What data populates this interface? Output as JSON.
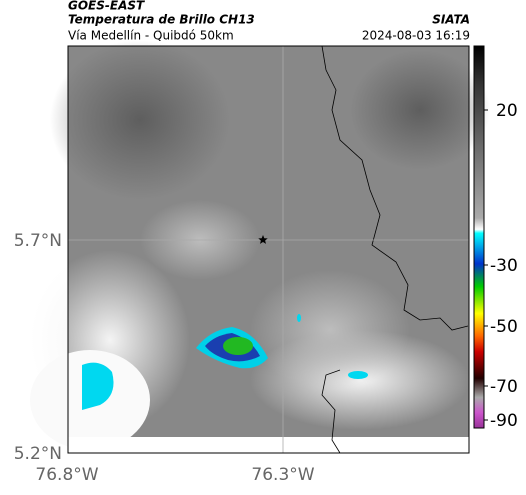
{
  "header": {
    "source": "GOES-EAST",
    "title": "Temperatura de Brillo CH13",
    "subtitle": "Vía Medellín - Quibdó 50km",
    "agency": "SIATA",
    "timestamp": "2024-08-03 16:19"
  },
  "axes": {
    "lat_labels": [
      "5.7°N",
      "5.2°N"
    ],
    "lon_labels": [
      "76.8°W",
      "76.3°W"
    ]
  },
  "colorbar": {
    "ticks": [
      20,
      -30,
      -50,
      -70,
      -90
    ]
  }
}
